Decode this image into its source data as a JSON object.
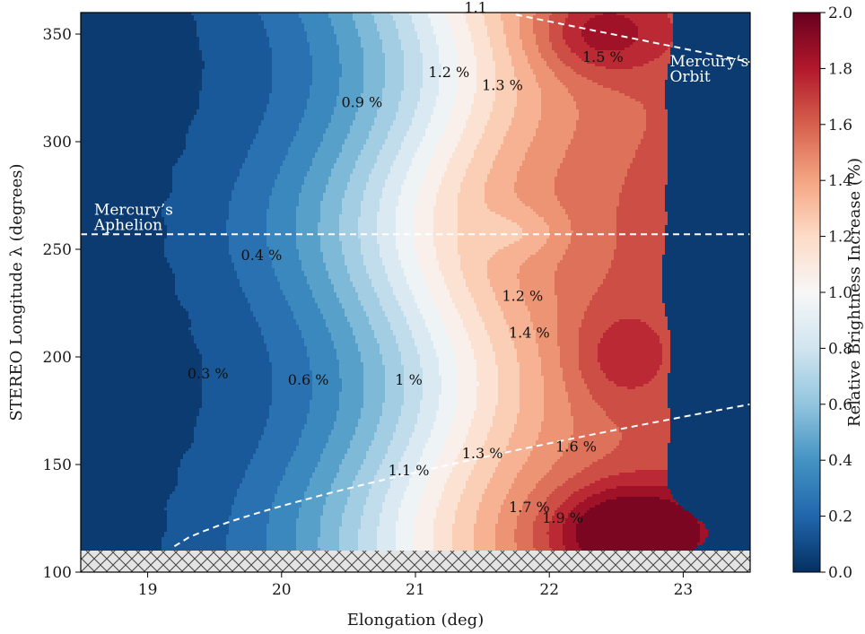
{
  "chart_data": {
    "type": "heatmap",
    "xlabel": "Elongation (deg)",
    "ylabel": "STEREO Longitude λ (degrees)",
    "xlim": [
      18.5,
      23.5
    ],
    "ylim": [
      100,
      360
    ],
    "x_ticks": [
      "19",
      "20",
      "21",
      "22",
      "23"
    ],
    "y_ticks": [
      "100",
      "150",
      "200",
      "250",
      "300",
      "350"
    ],
    "colorbar": {
      "label": "Relative Brightness Increase (%)",
      "range": [
        0.0,
        2.0
      ],
      "ticks": [
        "0.0",
        "0.2",
        "0.4",
        "0.6",
        "0.8",
        "1.0",
        "1.2",
        "1.4",
        "1.6",
        "1.8",
        "2.0"
      ],
      "levels": 20,
      "colormap": "RdBu_r",
      "low_color": "#053061",
      "mid_color": "#f7f7f7",
      "high_color": "#67001f"
    },
    "data_extent": {
      "elongation_max": 23.15,
      "longitude_min": 110
    },
    "masked_region": {
      "longitude_range": [
        100,
        110
      ],
      "pattern": "crosshatch"
    },
    "contour_labels": [
      {
        "text": "0.3 %",
        "x": 19.45,
        "y": 190
      },
      {
        "text": "0.4 %",
        "x": 19.85,
        "y": 245
      },
      {
        "text": "0.6 %",
        "x": 20.2,
        "y": 187
      },
      {
        "text": "0.9 %",
        "x": 20.6,
        "y": 316
      },
      {
        "text": "1 %",
        "x": 20.95,
        "y": 187
      },
      {
        "text": "1.1 %",
        "x": 20.95,
        "y": 145
      },
      {
        "text": "1.2 %",
        "x": 21.25,
        "y": 330
      },
      {
        "text": "1.3 %",
        "x": 21.65,
        "y": 324
      },
      {
        "text": "1.2 %",
        "x": 21.8,
        "y": 226
      },
      {
        "text": "1.4 %",
        "x": 21.85,
        "y": 209
      },
      {
        "text": "1.3 %",
        "x": 21.5,
        "y": 153
      },
      {
        "text": "1.6 %",
        "x": 22.2,
        "y": 156
      },
      {
        "text": "1.7 %",
        "x": 21.85,
        "y": 128
      },
      {
        "text": "1.9 %",
        "x": 22.1,
        "y": 123
      },
      {
        "text": "1.5 %",
        "x": 22.4,
        "y": 337
      },
      {
        "text": "1.1",
        "x": 21.45,
        "y": 360
      }
    ],
    "annotations": [
      {
        "text": "Mercury’s",
        "x": 18.6,
        "y": 266
      },
      {
        "text": "Aphelion",
        "x": 18.6,
        "y": 259
      },
      {
        "text": "Mercury’s",
        "x": 22.9,
        "y": 335
      },
      {
        "text": "Orbit",
        "x": 22.9,
        "y": 328
      }
    ],
    "reference_lines": [
      {
        "name": "aphelion",
        "style": "dashed",
        "y": 257
      },
      {
        "name": "orbit-lower",
        "style": "dashed",
        "x_range": [
          19.2,
          23.5
        ],
        "y_range": [
          112,
          178
        ]
      },
      {
        "name": "orbit-upper",
        "style": "dashed",
        "x_range": [
          21.75,
          23.5
        ],
        "y_range": [
          359,
          337
        ]
      }
    ]
  }
}
